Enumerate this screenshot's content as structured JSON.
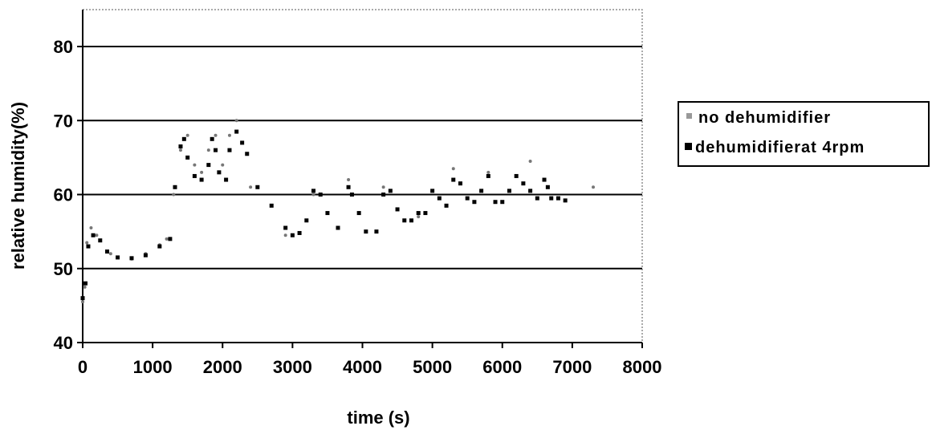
{
  "chart_data": {
    "type": "scatter",
    "xlabel": "time (s)",
    "ylabel": "relative humidity(%)",
    "xlim": [
      0,
      8000
    ],
    "ylim": [
      40,
      85
    ],
    "x_ticks": [
      "0",
      "1000",
      "2000",
      "3000",
      "4000",
      "5000",
      "6000",
      "7000",
      "8000"
    ],
    "y_ticks": [
      "40",
      "50",
      "60",
      "70",
      "80"
    ],
    "grid": "horizontal",
    "legend_position": "right",
    "series": [
      {
        "name": "no dehumidifier",
        "marker": "light-dot",
        "color": "#777777",
        "points": [
          [
            0,
            45.5
          ],
          [
            30,
            47.5
          ],
          [
            60,
            53.5
          ],
          [
            120,
            55.5
          ],
          [
            200,
            54.5
          ],
          [
            400,
            52.0
          ],
          [
            700,
            51.3
          ],
          [
            900,
            52.0
          ],
          [
            1100,
            53.2
          ],
          [
            1200,
            54.0
          ],
          [
            1300,
            60.0
          ],
          [
            1400,
            66.0
          ],
          [
            1500,
            68.0
          ],
          [
            1600,
            64.0
          ],
          [
            1700,
            63.0
          ],
          [
            1800,
            66.0
          ],
          [
            1900,
            68.0
          ],
          [
            2000,
            64.0
          ],
          [
            2100,
            68.0
          ],
          [
            2200,
            70.0
          ],
          [
            2400,
            61.0
          ],
          [
            2900,
            54.5
          ],
          [
            3300,
            60.0
          ],
          [
            3800,
            62.0
          ],
          [
            4300,
            61.0
          ],
          [
            4800,
            57.0
          ],
          [
            5300,
            63.5
          ],
          [
            5800,
            63.0
          ],
          [
            6400,
            64.5
          ],
          [
            7300,
            61.0
          ]
        ]
      },
      {
        "name": "dehumidifierat 4rpm",
        "marker": "square",
        "color": "#000000",
        "points": [
          [
            0,
            46.0
          ],
          [
            40,
            48.0
          ],
          [
            80,
            53.0
          ],
          [
            150,
            54.5
          ],
          [
            250,
            53.8
          ],
          [
            350,
            52.3
          ],
          [
            500,
            51.5
          ],
          [
            700,
            51.4
          ],
          [
            900,
            51.8
          ],
          [
            1100,
            53.0
          ],
          [
            1250,
            54.0
          ],
          [
            1320,
            61.0
          ],
          [
            1400,
            66.5
          ],
          [
            1450,
            67.5
          ],
          [
            1500,
            65.0
          ],
          [
            1600,
            62.5
          ],
          [
            1700,
            62.0
          ],
          [
            1800,
            64.0
          ],
          [
            1850,
            67.5
          ],
          [
            1900,
            66.0
          ],
          [
            1950,
            63.0
          ],
          [
            2050,
            62.0
          ],
          [
            2100,
            66.0
          ],
          [
            2200,
            68.5
          ],
          [
            2280,
            67.0
          ],
          [
            2350,
            65.5
          ],
          [
            2500,
            61.0
          ],
          [
            2700,
            58.5
          ],
          [
            2900,
            55.5
          ],
          [
            3000,
            54.5
          ],
          [
            3100,
            54.8
          ],
          [
            3200,
            56.5
          ],
          [
            3300,
            60.5
          ],
          [
            3400,
            60.0
          ],
          [
            3500,
            57.5
          ],
          [
            3650,
            55.5
          ],
          [
            3800,
            61.0
          ],
          [
            3850,
            60.0
          ],
          [
            3950,
            57.5
          ],
          [
            4050,
            55.0
          ],
          [
            4200,
            55.0
          ],
          [
            4300,
            60.0
          ],
          [
            4400,
            60.5
          ],
          [
            4500,
            58.0
          ],
          [
            4600,
            56.5
          ],
          [
            4700,
            56.5
          ],
          [
            4800,
            57.5
          ],
          [
            4900,
            57.5
          ],
          [
            5000,
            60.5
          ],
          [
            5100,
            59.5
          ],
          [
            5200,
            58.5
          ],
          [
            5300,
            62.0
          ],
          [
            5400,
            61.5
          ],
          [
            5500,
            59.5
          ],
          [
            5600,
            59.0
          ],
          [
            5700,
            60.5
          ],
          [
            5800,
            62.5
          ],
          [
            5900,
            59.0
          ],
          [
            6000,
            59.0
          ],
          [
            6100,
            60.5
          ],
          [
            6200,
            62.5
          ],
          [
            6300,
            61.5
          ],
          [
            6400,
            60.5
          ],
          [
            6500,
            59.5
          ],
          [
            6600,
            62.0
          ],
          [
            6650,
            61.0
          ],
          [
            6700,
            59.5
          ],
          [
            6800,
            59.5
          ],
          [
            6900,
            59.2
          ]
        ]
      }
    ]
  }
}
